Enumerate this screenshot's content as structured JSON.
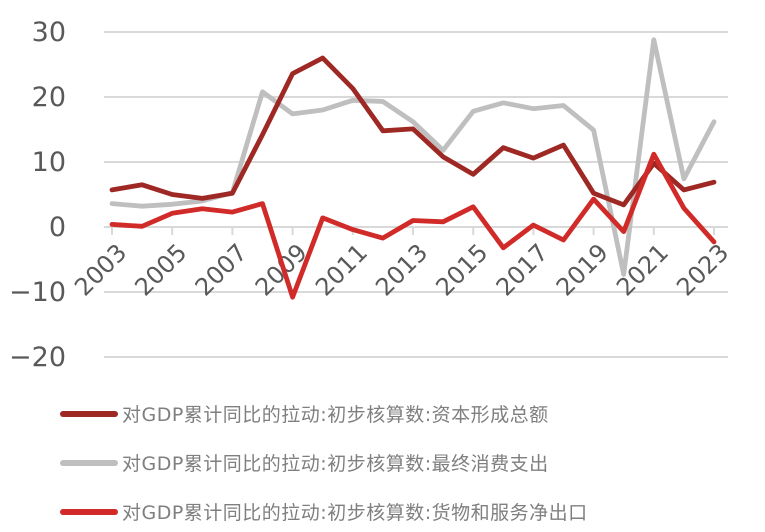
{
  "chart_data": {
    "type": "line",
    "title": "",
    "xlabel": "",
    "ylabel": "",
    "x": [
      2003,
      2004,
      2005,
      2006,
      2007,
      2008,
      2009,
      2010,
      2011,
      2012,
      2013,
      2014,
      2015,
      2016,
      2017,
      2018,
      2019,
      2020,
      2021,
      2022,
      2023
    ],
    "x_tick_label_years": [
      "2003",
      "2005",
      "2007",
      "2009",
      "2011",
      "2013",
      "2015",
      "2017",
      "2019",
      "2021",
      "2023"
    ],
    "ylim": [
      -20,
      30
    ],
    "y_ticks": [
      30,
      20,
      10,
      0,
      -10,
      -20
    ],
    "y_tick_labels": [
      "30",
      "20",
      "10",
      "0",
      "−10",
      "−20"
    ],
    "grid": "horizontal",
    "legend_position": "bottom-left",
    "series": [
      {
        "name": "对GDP累计同比的拉动:初步核算数:资本形成总额",
        "color": "#9E2823",
        "z": 2,
        "values": [
          5.7,
          6.5,
          5.0,
          4.4,
          5.2,
          14.2,
          23.6,
          26.0,
          21.3,
          14.8,
          15.1,
          10.8,
          8.1,
          12.2,
          10.6,
          12.6,
          5.2,
          3.4,
          9.8,
          5.7,
          6.9
        ]
      },
      {
        "name": "对GDP累计同比的拉动:初步核算数:最终消费支出",
        "color": "#BFBFBF",
        "z": 1,
        "values": [
          3.6,
          3.2,
          3.5,
          4.0,
          5.3,
          20.8,
          17.4,
          18.0,
          19.5,
          19.3,
          16.2,
          11.8,
          17.8,
          19.1,
          18.2,
          18.7,
          14.9,
          -7.3,
          28.8,
          7.4,
          16.2
        ]
      },
      {
        "name": "对GDP累计同比的拉动:初步核算数:货物和服务净出口",
        "color": "#D02B28",
        "z": 3,
        "values": [
          0.4,
          0.1,
          2.1,
          2.8,
          2.3,
          3.6,
          -10.8,
          1.4,
          -0.4,
          -1.7,
          1.0,
          0.8,
          3.1,
          -3.2,
          0.3,
          -2.0,
          4.3,
          -0.7,
          11.2,
          2.9,
          -2.3
        ]
      }
    ]
  },
  "legend": {
    "items": [
      {
        "label": "对GDP累计同比的拉动:初步核算数:资本形成总额",
        "color": "#9E2823"
      },
      {
        "label": "对GDP累计同比的拉动:初步核算数:最终消费支出",
        "color": "#BFBFBF"
      },
      {
        "label": "对GDP累计同比的拉动:初步核算数:货物和服务净出口",
        "color": "#D02B28"
      }
    ]
  },
  "style": {
    "grid_color": "#D9D9D9",
    "axis_label_color": "#595959",
    "legend_text_color": "#7F7F7F",
    "background": "#FFFFFF"
  }
}
